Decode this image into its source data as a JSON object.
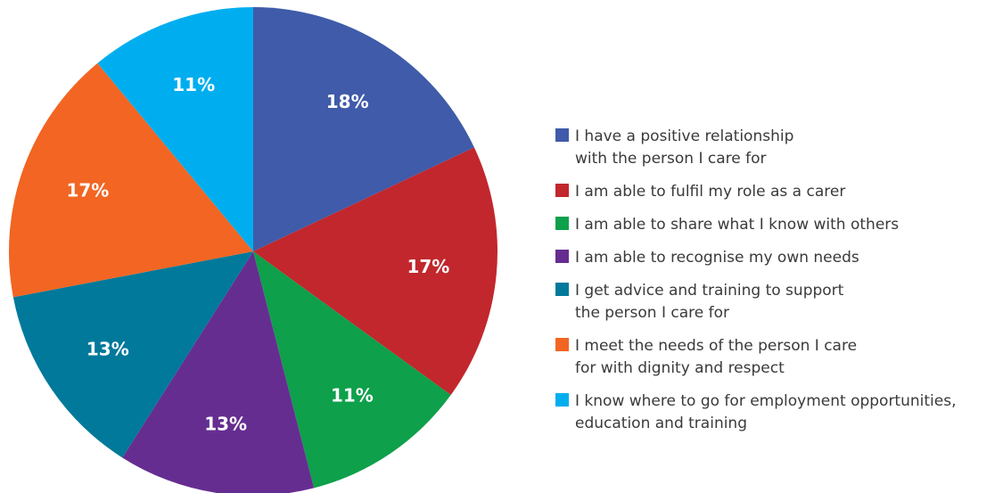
{
  "chart_data": {
    "type": "pie",
    "categories": [
      "I have a positive relationship\nwith the person I care for",
      "I am able to fulfil my role as a carer",
      "I am able to share what I know with others",
      "I am able to recognise my own needs",
      "I get advice and training to support\nthe person I care for",
      "I meet the needs of the person I care\nfor with dignity and respect",
      "I know where to go for employment opportunities,\neducation and training"
    ],
    "values": [
      18,
      17,
      11,
      13,
      13,
      17,
      11
    ],
    "value_labels": [
      "18%",
      "17%",
      "11%",
      "13%",
      "13%",
      "17%",
      "11%"
    ],
    "colors": [
      "#3f5ba9",
      "#c1272d",
      "#0ea04b",
      "#662d91",
      "#00799a",
      "#f26522",
      "#00aeef"
    ],
    "legend": "right"
  }
}
